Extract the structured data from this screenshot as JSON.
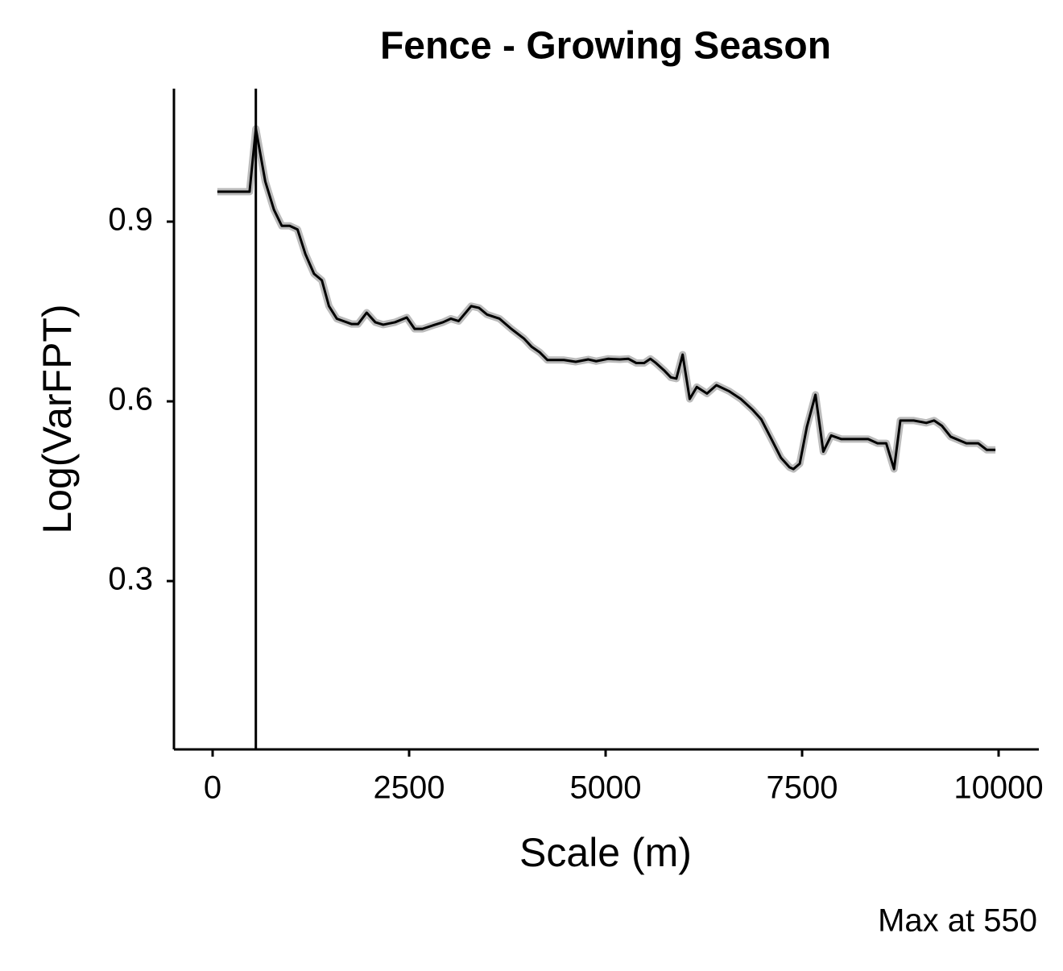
{
  "chart_data": {
    "type": "line",
    "title": "Fence - Growing Season",
    "x_label": "Scale (m)",
    "y_label": "Log(VarFPT)",
    "caption": "Max at 550",
    "x": [
      60,
      470,
      550,
      670,
      780,
      880,
      980,
      1080,
      1180,
      1290,
      1390,
      1480,
      1580,
      1770,
      1850,
      1960,
      2070,
      2170,
      2320,
      2470,
      2570,
      2670,
      2830,
      2930,
      3030,
      3130,
      3290,
      3390,
      3490,
      3650,
      3800,
      3960,
      4060,
      4160,
      4260,
      4470,
      4620,
      4780,
      4880,
      5030,
      5180,
      5290,
      5390,
      5490,
      5570,
      5640,
      5750,
      5830,
      5900,
      5980,
      6070,
      6160,
      6290,
      6410,
      6570,
      6720,
      6870,
      6980,
      7110,
      7230,
      7340,
      7390,
      7470,
      7560,
      7670,
      7770,
      7870,
      8000,
      8150,
      8340,
      8460,
      8570,
      8670,
      8750,
      8920,
      9080,
      9180,
      9280,
      9390,
      9590,
      9740,
      9850,
      9960
    ],
    "series": [
      {
        "name": "Log(VarFPT)",
        "color": "#000000",
        "values": [
          0.95,
          0.95,
          1.055,
          0.967,
          0.92,
          0.893,
          0.893,
          0.887,
          0.846,
          0.813,
          0.802,
          0.759,
          0.738,
          0.729,
          0.729,
          0.748,
          0.732,
          0.728,
          0.732,
          0.74,
          0.721,
          0.721,
          0.728,
          0.732,
          0.738,
          0.734,
          0.759,
          0.756,
          0.745,
          0.738,
          0.721,
          0.705,
          0.691,
          0.682,
          0.669,
          0.669,
          0.666,
          0.67,
          0.667,
          0.671,
          0.67,
          0.671,
          0.664,
          0.664,
          0.671,
          0.664,
          0.651,
          0.64,
          0.638,
          0.678,
          0.604,
          0.624,
          0.613,
          0.627,
          0.617,
          0.604,
          0.586,
          0.57,
          0.537,
          0.506,
          0.49,
          0.487,
          0.496,
          0.557,
          0.611,
          0.516,
          0.543,
          0.537,
          0.537,
          0.537,
          0.53,
          0.53,
          0.487,
          0.568,
          0.568,
          0.564,
          0.568,
          0.559,
          0.541,
          0.53,
          0.53,
          0.519,
          0.519
        ]
      }
    ],
    "vline": 550,
    "xlim": [
      -492,
      10512
    ],
    "xticks": [
      0,
      2500,
      5000,
      7500,
      10000
    ],
    "ylim": [
      0.019,
      1.122
    ],
    "yticks": [
      0.3,
      0.6,
      0.9
    ]
  }
}
